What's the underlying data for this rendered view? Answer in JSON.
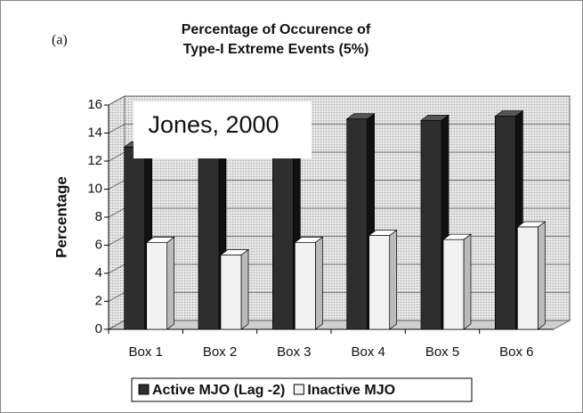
{
  "chart_data": {
    "type": "bar3d",
    "panel_label": "(a)",
    "title": [
      "Percentage of Occurence of",
      "Type-I Extreme Events (5%)"
    ],
    "annotation": "Jones, 2000",
    "ylabel": "Percentage",
    "categories": [
      "Box 1",
      "Box 2",
      "Box 3",
      "Box 4",
      "Box 5",
      "Box 6"
    ],
    "series": [
      {
        "name": "Active MJO (Lag -2)",
        "color": "#2e2e2e",
        "values": [
          13,
          12.3,
          13,
          15,
          14.9,
          15.2
        ]
      },
      {
        "name": "Inactive MJO",
        "color": "#f2f2f2",
        "values": [
          6.2,
          5.3,
          6.2,
          6.7,
          6.4,
          7.3
        ]
      }
    ],
    "ylim": [
      0,
      16
    ],
    "yticks": [
      0,
      2,
      4,
      6,
      8,
      10,
      12,
      14,
      16
    ],
    "grid": true
  }
}
